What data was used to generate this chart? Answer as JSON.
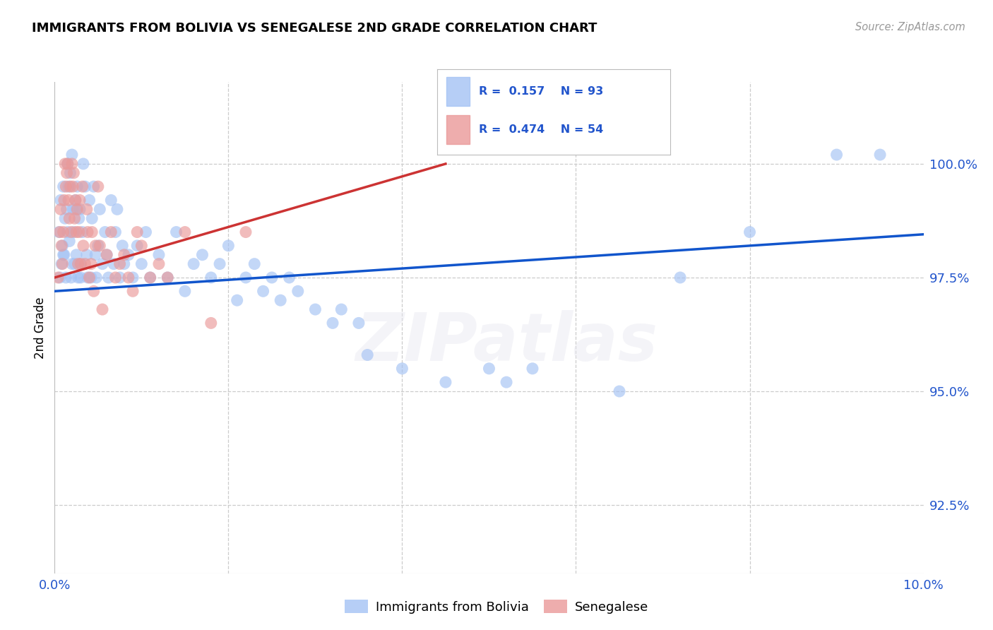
{
  "title": "IMMIGRANTS FROM BOLIVIA VS SENEGALESE 2ND GRADE CORRELATION CHART",
  "source": "Source: ZipAtlas.com",
  "ylabel": "2nd Grade",
  "ytick_labels": [
    "92.5%",
    "95.0%",
    "97.5%",
    "100.0%"
  ],
  "ytick_values": [
    92.5,
    95.0,
    97.5,
    100.0
  ],
  "xlim": [
    0.0,
    10.0
  ],
  "ylim": [
    91.0,
    101.8
  ],
  "legend_blue_label": "Immigrants from Bolivia",
  "legend_pink_label": "Senegalese",
  "blue_color": "#a4c2f4",
  "pink_color": "#ea9999",
  "blue_line_color": "#1155cc",
  "pink_line_color": "#cc3333",
  "blue_scatter_x": [
    0.05,
    0.07,
    0.08,
    0.09,
    0.1,
    0.11,
    0.12,
    0.13,
    0.14,
    0.15,
    0.16,
    0.17,
    0.18,
    0.19,
    0.2,
    0.21,
    0.22,
    0.23,
    0.24,
    0.25,
    0.26,
    0.27,
    0.28,
    0.29,
    0.3,
    0.32,
    0.33,
    0.35,
    0.37,
    0.38,
    0.4,
    0.42,
    0.43,
    0.45,
    0.47,
    0.48,
    0.5,
    0.52,
    0.55,
    0.58,
    0.6,
    0.62,
    0.65,
    0.68,
    0.7,
    0.72,
    0.75,
    0.78,
    0.8,
    0.85,
    0.9,
    0.95,
    1.0,
    1.05,
    1.1,
    1.2,
    1.3,
    1.4,
    1.5,
    1.6,
    1.7,
    1.8,
    1.9,
    2.0,
    2.1,
    2.2,
    2.3,
    2.4,
    2.5,
    2.6,
    2.7,
    2.8,
    3.0,
    3.2,
    3.3,
    3.5,
    3.6,
    4.0,
    4.5,
    5.0,
    5.2,
    5.5,
    6.5,
    7.2,
    8.0,
    9.0,
    9.5,
    0.06,
    0.1,
    0.15,
    0.2,
    0.25,
    0.3
  ],
  "blue_scatter_y": [
    98.5,
    99.2,
    97.8,
    98.2,
    99.5,
    98.0,
    98.8,
    97.5,
    99.0,
    100.0,
    99.5,
    98.3,
    99.8,
    97.5,
    100.2,
    99.0,
    98.5,
    97.8,
    99.2,
    98.0,
    99.5,
    97.5,
    98.8,
    99.0,
    97.8,
    98.5,
    100.0,
    99.5,
    98.0,
    97.5,
    99.2,
    97.5,
    98.8,
    99.5,
    98.0,
    97.5,
    98.2,
    99.0,
    97.8,
    98.5,
    98.0,
    97.5,
    99.2,
    97.8,
    98.5,
    99.0,
    97.5,
    98.2,
    97.8,
    98.0,
    97.5,
    98.2,
    97.8,
    98.5,
    97.5,
    98.0,
    97.5,
    98.5,
    97.2,
    97.8,
    98.0,
    97.5,
    97.8,
    98.2,
    97.0,
    97.5,
    97.8,
    97.2,
    97.5,
    97.0,
    97.5,
    97.2,
    96.8,
    96.5,
    96.8,
    96.5,
    95.8,
    95.5,
    95.2,
    95.5,
    95.2,
    95.5,
    95.0,
    97.5,
    98.5,
    100.2,
    100.2,
    97.5,
    98.0,
    98.5,
    97.8,
    99.0,
    97.5
  ],
  "pink_scatter_x": [
    0.04,
    0.06,
    0.07,
    0.08,
    0.09,
    0.1,
    0.11,
    0.12,
    0.13,
    0.14,
    0.15,
    0.16,
    0.17,
    0.18,
    0.19,
    0.2,
    0.21,
    0.22,
    0.23,
    0.24,
    0.25,
    0.26,
    0.27,
    0.28,
    0.29,
    0.3,
    0.32,
    0.33,
    0.35,
    0.37,
    0.38,
    0.4,
    0.42,
    0.43,
    0.45,
    0.47,
    0.5,
    0.52,
    0.55,
    0.6,
    0.65,
    0.7,
    0.75,
    0.8,
    0.85,
    0.9,
    0.95,
    1.0,
    1.1,
    1.2,
    1.3,
    1.5,
    1.8,
    2.2
  ],
  "pink_scatter_y": [
    97.5,
    98.5,
    99.0,
    98.2,
    97.8,
    98.5,
    99.2,
    100.0,
    99.5,
    99.8,
    100.0,
    99.2,
    98.8,
    99.5,
    98.5,
    100.0,
    99.5,
    99.8,
    98.8,
    99.2,
    98.5,
    99.0,
    97.8,
    98.5,
    99.2,
    97.8,
    99.5,
    98.2,
    97.8,
    99.0,
    98.5,
    97.5,
    97.8,
    98.5,
    97.2,
    98.2,
    99.5,
    98.2,
    96.8,
    98.0,
    98.5,
    97.5,
    97.8,
    98.0,
    97.5,
    97.2,
    98.5,
    98.2,
    97.5,
    97.8,
    97.5,
    98.5,
    96.5,
    98.5
  ],
  "blue_trend_x": [
    0.0,
    10.0
  ],
  "blue_trend_y": [
    97.2,
    98.45
  ],
  "pink_trend_x": [
    0.0,
    4.5
  ],
  "pink_trend_y": [
    97.5,
    100.0
  ]
}
